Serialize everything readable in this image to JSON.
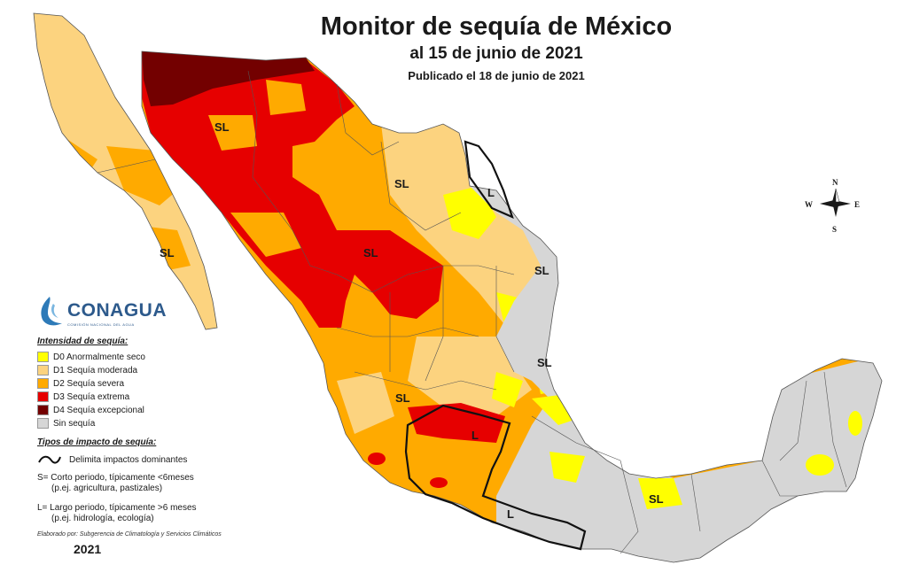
{
  "header": {
    "title": "Monitor de sequía de México",
    "subtitle": "al 15 de junio de 2021",
    "published": "Publicado el 18 de junio de 2021"
  },
  "logo": {
    "name": "CONAGUA",
    "tagline": "COMISIÓN NACIONAL DEL AGUA"
  },
  "legend": {
    "intensity_title": "Intensidad de sequía:",
    "categories": [
      {
        "label": "D0 Anormalmente seco",
        "color": "#ffff00"
      },
      {
        "label": "D1 Sequía moderada",
        "color": "#fcd37f"
      },
      {
        "label": "D2 Sequía severa",
        "color": "#ffaa00"
      },
      {
        "label": "D3 Sequía extrema",
        "color": "#e60000"
      },
      {
        "label": "D4 Sequía excepcional",
        "color": "#730000"
      },
      {
        "label": "Sin sequía",
        "color": "#d6d6d6"
      }
    ],
    "impact_title": "Tipos de impacto de sequía:",
    "impact_line_label": "Delimita impactos dominantes",
    "impact_s_line1": "S= Corto periodo, típicamente <6meses",
    "impact_s_line2": "(p.ej. agricultura, pastizales)",
    "impact_l_line1": "L= Largo periodo, típicamente >6 meses",
    "impact_l_line2": "(p.ej. hidrología, ecología)"
  },
  "credit": "Elaborado por: Subgerencia de Climatología y Servicios Climáticos",
  "year": "2021",
  "map_labels": [
    "SL",
    "SL",
    "SL",
    "SL",
    "SL",
    "SL",
    "SL",
    "L",
    "L",
    "L",
    "SL"
  ],
  "compass": {
    "n": "N",
    "s": "S",
    "e": "E",
    "w": "W"
  }
}
